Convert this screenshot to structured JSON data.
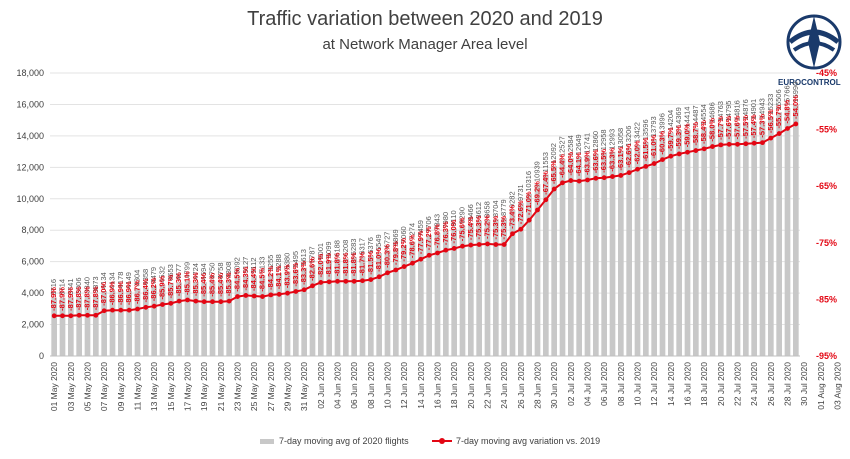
{
  "title": "Traffic variation between 2020 and 2019",
  "subtitle": "at Network Manager Area level",
  "logo": {
    "text": "EUROCONTROL",
    "icon": "eurocontrol-logo"
  },
  "colors": {
    "bars": "#c8c8c8",
    "line": "#e30613",
    "pct_label": "#e30613",
    "text": "#404040",
    "grid": "#e3e3e3"
  },
  "chart_data": {
    "type": "bar+line",
    "title": "Traffic variation between 2020 and 2019",
    "subtitle": "at Network Manager Area level",
    "y_left": {
      "lim": [
        0,
        18000
      ],
      "ticks": [
        "0",
        "2,000",
        "4,000",
        "6,000",
        "8,000",
        "10,000",
        "12,000",
        "14,000",
        "16,000",
        "18,000"
      ]
    },
    "y_right": {
      "lim": [
        -95,
        -45
      ],
      "ticks": [
        "-45%",
        "-55%",
        "-65%",
        "-75%",
        "-85%",
        "-95%"
      ]
    },
    "x_tick_labels": [
      "01 May 2020",
      "03 May 2020",
      "05 May 2020",
      "07 May 2020",
      "09 May 2020",
      "11 May 2020",
      "13 May 2020",
      "15 May 2020",
      "17 May 2020",
      "19 May 2020",
      "21 May 2020",
      "23 May 2020",
      "25 May 2020",
      "27 May 2020",
      "29 May 2020",
      "31 May 2020",
      "02 Jun 2020",
      "04 Jun 2020",
      "06 Jun 2020",
      "08 Jun 2020",
      "10 Jun 2020",
      "12 Jun 2020",
      "14 Jun 2020",
      "16 Jun 2020",
      "18 Jun 2020",
      "20 Jun 2020",
      "22 Jun 2020",
      "24 Jun 2020",
      "26 Jun 2020",
      "28 Jun 2020",
      "30 Jun 2020",
      "02 Jul 2020",
      "04 Jul 2020",
      "06 Jul 2020",
      "08 Jul 2020",
      "10 Jul 2020",
      "12 Jul 2020",
      "14 Jul 2020",
      "16 Jul 2020",
      "18 Jul 2020",
      "20 Jul 2020",
      "22 Jul 2020",
      "24 Jul 2020",
      "26 Jul 2020",
      "28 Jul 2020",
      "30 Jul 2020",
      "01 Aug 2020",
      "03 Aug 2020"
    ],
    "bars": {
      "name": "7-day moving avg of 2020 flights",
      "values": [
        3716,
        3714,
        3741,
        3806,
        3840,
        3873,
        4134,
        4134,
        4178,
        4149,
        4304,
        4358,
        4479,
        4532,
        4653,
        4677,
        4799,
        4724,
        4694,
        4750,
        4758,
        4808,
        5092,
        5127,
        5112,
        5133,
        5255,
        5288,
        5380,
        5495,
        5613,
        5787,
        6001,
        6099,
        6188,
        6208,
        6283,
        6317,
        6376,
        6549,
        6727,
        6869,
        7060,
        7274,
        7459,
        7706,
        7843,
        7980,
        8110,
        8290,
        8466,
        8612,
        8658,
        8704,
        8779,
        9282,
        9731,
        10316,
        10939,
        11553,
        12092,
        12527,
        12584,
        12649,
        12741,
        12860,
        12958,
        12993,
        13058,
        13206,
        13422,
        13596,
        13793,
        13996,
        14204,
        14369,
        14414,
        14487,
        14554,
        14686,
        14763,
        14795,
        14816,
        14876,
        14901,
        14943,
        15233,
        15506,
        15766,
        15990
      ]
    },
    "line": {
      "name": "7-day moving avg variation vs. 2019",
      "values": [
        -87.9,
        -87.9,
        -87.9,
        -87.8,
        -87.8,
        -87.8,
        -87.0,
        -86.9,
        -86.9,
        -86.9,
        -86.7,
        -86.4,
        -86.2,
        -85.9,
        -85.7,
        -85.3,
        -85.1,
        -85.3,
        -85.4,
        -85.4,
        -85.4,
        -85.3,
        -84.5,
        -84.3,
        -84.4,
        -84.5,
        -84.2,
        -84.1,
        -83.9,
        -83.6,
        -83.3,
        -82.6,
        -82.0,
        -81.9,
        -81.8,
        -81.8,
        -81.8,
        -81.7,
        -81.5,
        -81.0,
        -80.3,
        -79.8,
        -79.2,
        -78.6,
        -77.9,
        -77.2,
        -76.8,
        -76.3,
        -76.0,
        -75.6,
        -75.4,
        -75.3,
        -75.2,
        -75.3,
        -75.3,
        -73.4,
        -72.6,
        -71.0,
        -69.2,
        -67.4,
        -65.5,
        -64.4,
        -64.0,
        -64.1,
        -63.9,
        -63.6,
        -63.5,
        -63.3,
        -63.1,
        -62.6,
        -62.0,
        -61.5,
        -61.0,
        -60.3,
        -59.7,
        -59.3,
        -59.0,
        -58.7,
        -58.4,
        -58.0,
        -57.7,
        -57.6,
        -57.6,
        -57.5,
        -57.4,
        -57.3,
        -56.5,
        -55.7,
        -54.8,
        -54.0
      ]
    },
    "legend": [
      "7-day moving avg of 2020 flights",
      "7-day moving avg variation vs. 2019"
    ],
    "legend_position": "bottom",
    "grid": true
  }
}
